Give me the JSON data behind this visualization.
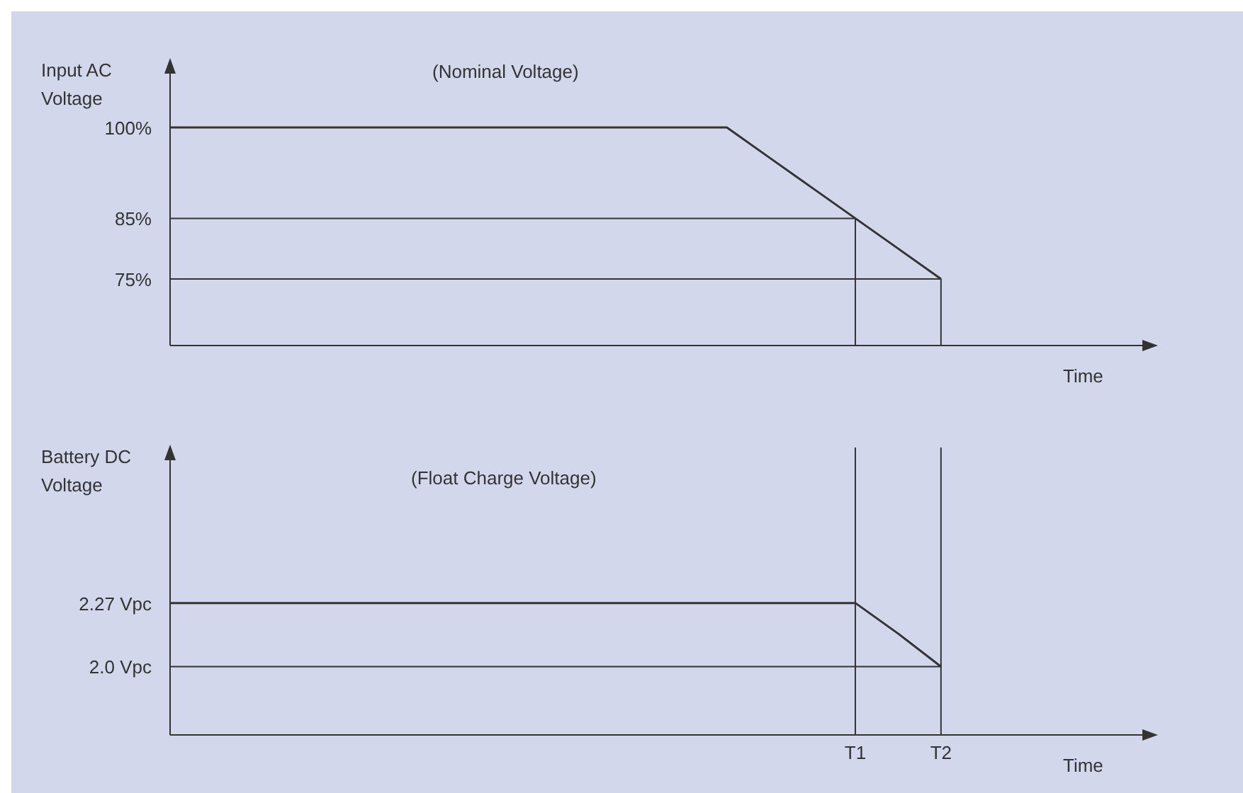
{
  "chart_data": [
    {
      "type": "line",
      "ylabel": "Input AC Voltage",
      "xlabel": "Time",
      "annotations": [
        "(Nominal Voltage)"
      ],
      "categories": [
        null,
        null,
        null,
        null,
        null,
        null,
        null,
        null,
        null,
        null,
        null,
        null,
        null,
        null,
        null,
        null,
        "T1",
        null,
        "T2",
        null,
        null,
        null,
        null,
        null
      ],
      "series": [
        {
          "color": "#333333",
          "values": [
            100,
            100,
            100,
            100,
            100,
            100,
            100,
            100,
            100,
            100,
            100,
            100,
            100,
            100,
            95,
            90,
            85,
            80,
            75,
            null,
            null,
            null,
            null,
            null
          ]
        }
      ],
      "ylim": [
        64,
        111
      ],
      "yticks": [
        {
          "value": 100,
          "label": "100%"
        },
        {
          "value": 85,
          "label": "85%"
        },
        {
          "value": 75,
          "label": "75%"
        }
      ],
      "tick_labels": "y",
      "marker": "none",
      "ref_lines": [
        {
          "axis": "y",
          "value": 85
        },
        {
          "axis": "y",
          "value": 75
        },
        {
          "axis": "x",
          "value": "T1"
        },
        {
          "axis": "x",
          "value": "T2"
        }
      ]
    },
    {
      "type": "line",
      "ylabel": "Battery DC Voltage",
      "xlabel": "Time",
      "annotations": [
        "(Float Charge Voltage)"
      ],
      "categories": [
        null,
        null,
        null,
        null,
        null,
        null,
        null,
        null,
        null,
        null,
        null,
        null,
        null,
        null,
        null,
        null,
        "T1",
        null,
        "T2",
        null,
        null,
        null,
        null,
        null
      ],
      "series": [
        {
          "color": "#333333",
          "values": [
            2.27,
            2.27,
            2.27,
            2.27,
            2.27,
            2.27,
            2.27,
            2.27,
            2.27,
            2.27,
            2.27,
            2.27,
            2.27,
            2.27,
            2.27,
            2.27,
            2.27,
            2.14,
            2.0,
            null,
            null,
            null,
            null,
            null
          ]
        }
      ],
      "ylim": [
        1.71,
        2.93
      ],
      "yticks": [
        {
          "value": 2.27,
          "label": "2.27 Vpc"
        },
        {
          "value": 2.0,
          "label": "2.0 Vpc"
        }
      ],
      "marker": "none",
      "ref_lines": [
        {
          "axis": "y",
          "value": 2.0
        },
        {
          "axis": "x",
          "value": "T1"
        },
        {
          "axis": "x",
          "value": "T2"
        }
      ]
    }
  ]
}
